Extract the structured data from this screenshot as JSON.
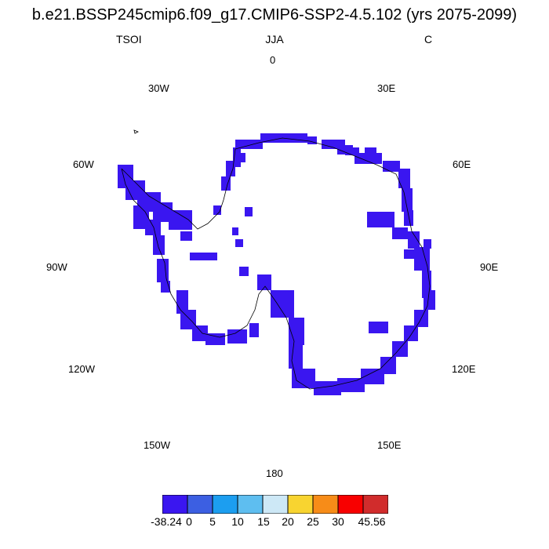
{
  "title": "b.e21.BSSP245cmip6.f09_g17.CMIP6-SSP2-4.5.102 (yrs 2075-2099)",
  "variable": "TSOI",
  "season": "JJA",
  "units": "C",
  "longitude_labels": {
    "lon_0": "0",
    "lon_30e": "30E",
    "lon_60e": "60E",
    "lon_90e": "90E",
    "lon_120e": "120E",
    "lon_150e": "150E",
    "lon_180": "180",
    "lon_150w": "150W",
    "lon_120w": "120W",
    "lon_90w": "90W",
    "lon_60w": "60W",
    "lon_30w": "30W"
  },
  "colors": {
    "field": "#3a16f0",
    "coastline": "#000000"
  },
  "colorbar": {
    "colors": [
      "#3a16f0",
      "#3c5fe2",
      "#1c9ef0",
      "#5ebef0",
      "#cde8f6",
      "#f8d430",
      "#f78c18",
      "#f80000",
      "#d12c2c"
    ],
    "labels": [
      "-38.24",
      "0",
      "5",
      "10",
      "15",
      "20",
      "25",
      "30",
      "45.56"
    ]
  }
}
